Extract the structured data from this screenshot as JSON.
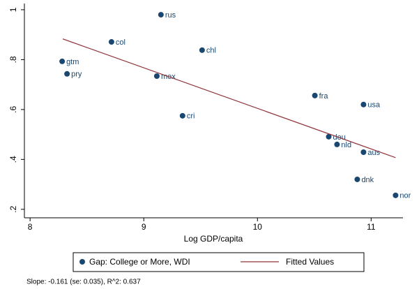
{
  "chart_data": {
    "type": "scatter",
    "x_label": "Log GDP/capita",
    "xlim": [
      7.95,
      11.28
    ],
    "xticks": [
      8,
      9,
      10,
      11
    ],
    "ylim": [
      0.166,
      1.025
    ],
    "yticks": [
      {
        "value": 0.2,
        "label": ".2"
      },
      {
        "value": 0.4,
        "label": ".4"
      },
      {
        "value": 0.6,
        "label": ".6"
      },
      {
        "value": 0.8,
        "label": ".8"
      },
      1
    ],
    "series": [
      {
        "name": "Gap: College or More, WDI",
        "type": "scatter",
        "color": "#1a476f",
        "labels": [
          "rus",
          "col",
          "chl",
          "gtm",
          "pry",
          "mex",
          "cri",
          "fra",
          "usa",
          "deu",
          "nld",
          "aus",
          "dnk",
          "nor"
        ],
        "x": [
          9.151,
          8.716,
          9.513,
          8.282,
          8.325,
          9.115,
          9.341,
          10.505,
          10.933,
          10.627,
          10.7,
          10.933,
          10.878,
          11.215
        ],
        "values": [
          0.98,
          0.871,
          0.838,
          0.793,
          0.743,
          0.734,
          0.575,
          0.656,
          0.62,
          0.491,
          0.46,
          0.429,
          0.32,
          0.256
        ]
      },
      {
        "name": "Fitted Values",
        "type": "line",
        "color": "#90353b",
        "x": [
          8.288,
          11.215
        ],
        "values": [
          0.883,
          0.407
        ]
      }
    ],
    "note": "Slope: -0.161 (se: 0.035), R^2: 0.637"
  }
}
